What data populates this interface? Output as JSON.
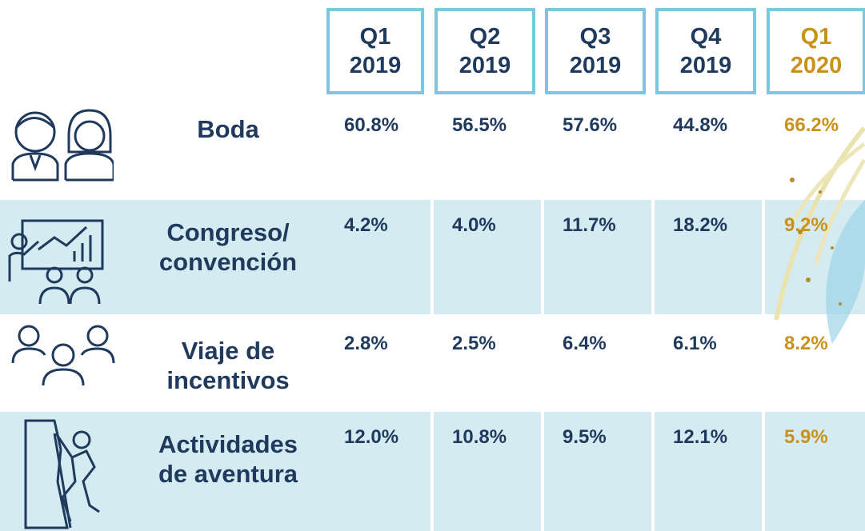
{
  "table": {
    "columns": [
      {
        "quarter": "Q1",
        "year": "2019"
      },
      {
        "quarter": "Q2",
        "year": "2019"
      },
      {
        "quarter": "Q3",
        "year": "2019"
      },
      {
        "quarter": "Q4",
        "year": "2019"
      },
      {
        "quarter": "Q1",
        "year": "2020"
      }
    ],
    "rows": [
      {
        "label": [
          "Boda"
        ],
        "values": [
          "60.8%",
          "56.5%",
          "57.6%",
          "44.8%",
          "66.2%"
        ]
      },
      {
        "label": [
          "Congreso/",
          "convención"
        ],
        "values": [
          "4.2%",
          "4.0%",
          "11.7%",
          "18.2%",
          "9.2%"
        ]
      },
      {
        "label": [
          "Viaje de",
          "incentivos"
        ],
        "values": [
          "2.8%",
          "2.5%",
          "6.4%",
          "6.1%",
          "8.2%"
        ]
      },
      {
        "label": [
          "Actividades",
          "de aventura"
        ],
        "values": [
          "12.0%",
          "10.8%",
          "9.5%",
          "12.1%",
          "5.9%"
        ]
      }
    ]
  }
}
